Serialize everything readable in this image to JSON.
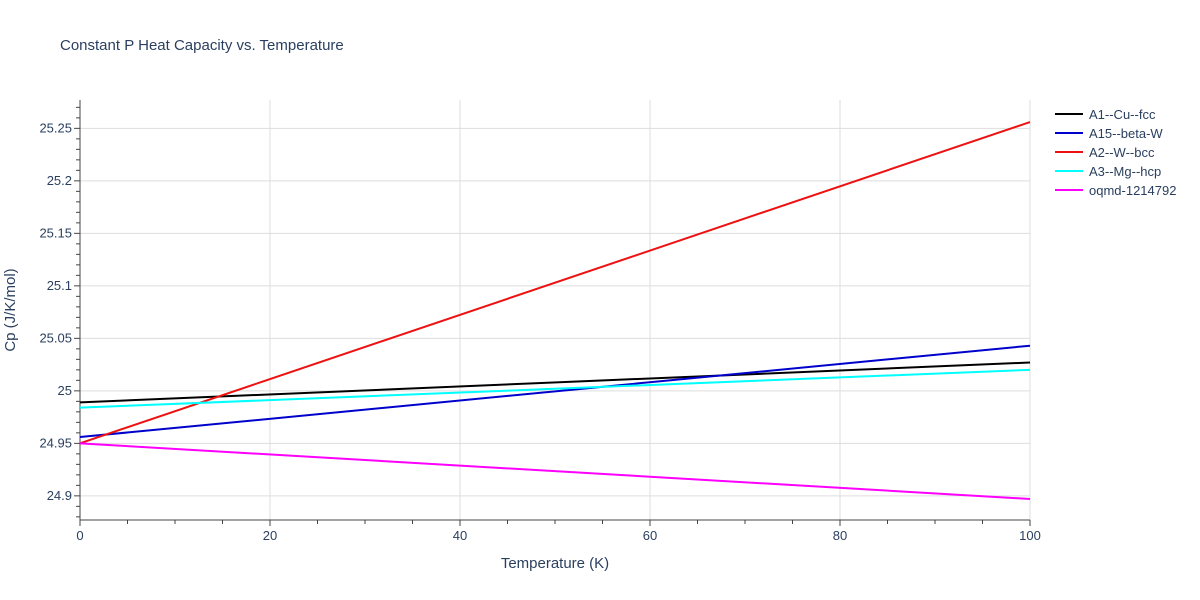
{
  "chart_data": {
    "type": "line",
    "title": "Constant P Heat Capacity vs. Temperature",
    "xlabel": "Temperature (K)",
    "ylabel": "Cp (J/K/mol)",
    "xlim": [
      0,
      100
    ],
    "ylim": [
      24.877,
      25.277
    ],
    "x_ticks": [
      0,
      20,
      40,
      60,
      80,
      100
    ],
    "x_tick_labels": [
      "0",
      "20",
      "40",
      "60",
      "80",
      "100"
    ],
    "y_ticks": [
      24.9,
      24.95,
      25,
      25.05,
      25.1,
      25.15,
      25.2,
      25.25
    ],
    "y_tick_labels": [
      "24.9",
      "24.95",
      "25",
      "25.05",
      "25.1",
      "25.15",
      "25.2",
      "25.25"
    ],
    "grid": true,
    "legend_position": "top-right",
    "series": [
      {
        "name": "A1--Cu--fcc",
        "color": "#000000",
        "x": [
          0,
          100
        ],
        "y": [
          24.989,
          25.027
        ]
      },
      {
        "name": "A15--beta-W",
        "color": "#0000cc",
        "x": [
          0,
          100
        ],
        "y": [
          24.956,
          25.043
        ]
      },
      {
        "name": "A2--W--bcc",
        "color": "#ee1111",
        "x": [
          0,
          100
        ],
        "y": [
          24.95,
          25.256
        ]
      },
      {
        "name": "A3--Mg--hcp",
        "color": "#00ffff",
        "x": [
          0,
          100
        ],
        "y": [
          24.984,
          25.02
        ]
      },
      {
        "name": "oqmd-1214792",
        "color": "#ff00ff",
        "x": [
          0,
          100
        ],
        "y": [
          24.95,
          24.897
        ]
      }
    ]
  }
}
